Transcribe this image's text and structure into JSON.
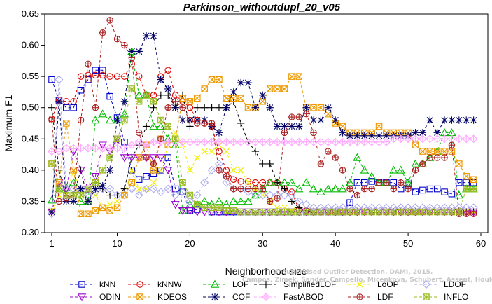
{
  "chart_data": {
    "type": "line",
    "title": "Parkinson_withoutdupl_20_v05",
    "xlabel": "Neighborhood size",
    "ylabel": "Maximum F1",
    "xlim": [
      1,
      60
    ],
    "ylim": [
      0.3,
      0.65
    ],
    "xticks": [
      "1",
      "10",
      "20",
      "30",
      "40",
      "50",
      "60"
    ],
    "yticks": [
      "0.30",
      "0.35",
      "0.40",
      "0.45",
      "0.50",
      "0.55",
      "0.60",
      "0.65"
    ],
    "grid": false,
    "legend_position": "bottom",
    "x": [
      1,
      2,
      3,
      4,
      5,
      6,
      7,
      8,
      9,
      10,
      11,
      12,
      13,
      14,
      15,
      16,
      17,
      18,
      19,
      20,
      21,
      22,
      23,
      24,
      25,
      26,
      27,
      28,
      29,
      30,
      31,
      32,
      33,
      34,
      35,
      36,
      37,
      38,
      39,
      40,
      41,
      42,
      43,
      44,
      45,
      46,
      47,
      48,
      49,
      50,
      51,
      52,
      53,
      54,
      55,
      56,
      57,
      58,
      59
    ],
    "series": [
      {
        "name": "kNN",
        "color": "#0000cc",
        "marker": "square",
        "values": [
          0.545,
          0.512,
          0.5,
          0.5,
          0.528,
          0.545,
          0.56,
          0.56,
          0.518,
          0.484,
          0.445,
          0.4,
          0.385,
          0.39,
          0.395,
          0.4,
          0.42,
          0.37,
          0.365,
          0.335,
          0.337,
          0.34,
          0.333,
          0.333,
          0.333,
          0.333,
          0.333,
          0.333,
          0.333,
          0.333,
          0.333,
          0.333,
          0.333,
          0.333,
          0.333,
          0.333,
          0.333,
          0.333,
          0.333,
          0.333,
          0.333,
          0.348,
          0.38,
          0.38,
          0.382,
          0.38,
          0.38,
          0.38,
          0.37,
          0.378,
          0.365,
          0.368,
          0.37,
          0.37,
          0.365,
          0.362,
          0.38,
          0.38,
          0.38
        ]
      },
      {
        "name": "kNNW",
        "color": "#dd0000",
        "marker": "circle",
        "values": [
          0.482,
          0.512,
          0.51,
          0.51,
          0.55,
          0.552,
          0.552,
          0.552,
          0.55,
          0.55,
          0.55,
          0.57,
          0.55,
          0.52,
          0.52,
          0.55,
          0.56,
          0.52,
          0.51,
          0.5,
          0.48,
          0.475,
          0.47,
          0.43,
          0.4,
          0.385,
          0.382,
          0.382,
          0.38,
          0.38,
          0.38,
          0.38,
          0.37,
          0.365,
          0.337,
          0.335,
          0.333,
          0.333,
          0.333,
          0.333,
          0.333,
          0.333,
          0.333,
          0.333,
          0.333,
          0.333,
          0.333,
          0.333,
          0.333,
          0.333,
          0.333,
          0.333,
          0.333,
          0.333,
          0.333,
          0.333,
          0.333,
          0.333,
          0.333
        ]
      },
      {
        "name": "LOF",
        "color": "#00bb00",
        "marker": "triangle-up",
        "values": [
          0.352,
          0.37,
          0.372,
          0.38,
          0.35,
          0.35,
          0.48,
          0.49,
          0.48,
          0.48,
          0.49,
          0.59,
          0.52,
          0.52,
          0.47,
          0.47,
          0.45,
          0.44,
          0.335,
          0.345,
          0.345,
          0.35,
          0.345,
          0.35,
          0.345,
          0.35,
          0.35,
          0.35,
          0.36,
          0.37,
          0.38,
          0.38,
          0.38,
          0.38,
          0.37,
          0.38,
          0.37,
          0.365,
          0.37,
          0.37,
          0.37,
          0.38,
          0.42,
          0.4,
          0.39,
          0.38,
          0.38,
          0.4,
          0.4,
          0.38,
          0.41,
          0.41,
          0.42,
          0.43,
          0.46,
          0.46,
          0.36,
          0.37,
          0.37
        ]
      },
      {
        "name": "SimplifiedLOF",
        "color": "#000000",
        "marker": "plus",
        "values": [
          0.5,
          0.4,
          0.355,
          0.36,
          0.4,
          0.35,
          0.38,
          0.37,
          0.36,
          0.36,
          0.37,
          0.42,
          0.44,
          0.47,
          0.5,
          0.52,
          0.52,
          0.5,
          0.52,
          0.47,
          0.5,
          0.5,
          0.5,
          0.5,
          0.5,
          0.51,
          0.475,
          0.445,
          0.43,
          0.41,
          0.41,
          0.38,
          0.37,
          0.35,
          0.34,
          0.335,
          0.333,
          0.333,
          0.333,
          0.333,
          0.333,
          0.333,
          0.333,
          0.333,
          0.333,
          0.333,
          0.333,
          0.333,
          0.333,
          0.333,
          0.333,
          0.333,
          0.333,
          0.333,
          0.333,
          0.333,
          0.333,
          0.333,
          0.333
        ]
      },
      {
        "name": "LoOP",
        "color": "#eeee00",
        "marker": "x",
        "values": [
          0.335,
          0.36,
          0.36,
          0.4,
          0.36,
          0.35,
          0.36,
          0.34,
          0.345,
          0.35,
          0.36,
          0.4,
          0.37,
          0.37,
          0.38,
          0.4,
          0.44,
          0.46,
          0.44,
          0.4,
          0.42,
          0.43,
          0.43,
          0.44,
          0.43,
          0.4,
          0.4,
          0.38,
          0.37,
          0.36,
          0.35,
          0.34,
          0.34,
          0.335,
          0.333,
          0.333,
          0.333,
          0.333,
          0.333,
          0.333,
          0.333,
          0.333,
          0.333,
          0.333,
          0.333,
          0.333,
          0.333,
          0.333,
          0.333,
          0.333,
          0.333,
          0.333,
          0.333,
          0.333,
          0.333,
          0.333,
          0.333,
          0.333,
          0.333
        ]
      },
      {
        "name": "LDOF",
        "color": "#aaaaee",
        "marker": "diamond",
        "values": [
          0.33,
          0.545,
          0.37,
          0.37,
          0.37,
          0.36,
          0.365,
          0.37,
          0.37,
          0.36,
          0.36,
          0.37,
          0.36,
          0.37,
          0.37,
          0.365,
          0.37,
          0.36,
          0.365,
          0.35,
          0.36,
          0.38,
          0.4,
          0.41,
          0.38,
          0.37,
          0.37,
          0.365,
          0.36,
          0.36,
          0.36,
          0.36,
          0.36,
          0.36,
          0.35,
          0.345,
          0.34,
          0.34,
          0.34,
          0.34,
          0.34,
          0.34,
          0.34,
          0.34,
          0.34,
          0.34,
          0.34,
          0.34,
          0.34,
          0.34,
          0.34,
          0.34,
          0.34,
          0.34,
          0.34,
          0.34,
          0.34,
          0.34,
          0.34
        ]
      },
      {
        "name": "ODIN",
        "color": "#9900cc",
        "marker": "triangle-down",
        "values": [
          0.333,
          0.38,
          0.37,
          0.43,
          0.4,
          0.37,
          0.39,
          0.44,
          0.43,
          0.45,
          0.42,
          0.42,
          0.42,
          0.42,
          0.42,
          0.42,
          0.4,
          0.345,
          0.335,
          0.335,
          0.333,
          0.333,
          0.333,
          0.333,
          0.333,
          0.333,
          0.333,
          0.333,
          0.333,
          0.333,
          0.333,
          0.333,
          0.333,
          0.333,
          0.333,
          0.333,
          0.333,
          0.333,
          0.333,
          0.333,
          0.333,
          0.333,
          0.333,
          0.333,
          0.333,
          0.333,
          0.333,
          0.333,
          0.333,
          0.333,
          0.333,
          0.333,
          0.333,
          0.333,
          0.333,
          0.333,
          0.333,
          0.333,
          0.333
        ]
      },
      {
        "name": "KDEOS",
        "color": "#ee9900",
        "marker": "square-x",
        "values": [
          0.41,
          0.38,
          0.475,
          0.4,
          0.33,
          0.33,
          0.335,
          0.34,
          0.335,
          0.34,
          0.36,
          0.38,
          0.42,
          0.44,
          0.4,
          0.45,
          0.44,
          0.45,
          0.515,
          0.51,
          0.515,
          0.53,
          0.545,
          0.545,
          0.515,
          0.515,
          0.515,
          0.5,
          0.5,
          0.51,
          0.53,
          0.53,
          0.53,
          0.55,
          0.55,
          0.5,
          0.5,
          0.5,
          0.49,
          0.475,
          0.47,
          0.46,
          0.46,
          0.46,
          0.46,
          0.47,
          0.46,
          0.46,
          0.46,
          0.46,
          0.44,
          0.43,
          0.43,
          0.43,
          0.43,
          0.43,
          0.41,
          0.39,
          0.385
        ]
      },
      {
        "name": "COF",
        "color": "#000066",
        "marker": "star",
        "values": [
          0.333,
          0.51,
          0.35,
          0.35,
          0.37,
          0.35,
          0.37,
          0.375,
          0.4,
          0.48,
          0.51,
          0.59,
          0.59,
          0.615,
          0.615,
          0.545,
          0.53,
          0.5,
          0.48,
          0.48,
          0.48,
          0.48,
          0.47,
          0.46,
          0.5,
          0.525,
          0.54,
          0.54,
          0.5,
          0.52,
          0.5,
          0.47,
          0.47,
          0.47,
          0.47,
          0.5,
          0.48,
          0.48,
          0.5,
          0.48,
          0.46,
          0.455,
          0.455,
          0.455,
          0.455,
          0.455,
          0.455,
          0.455,
          0.455,
          0.455,
          0.46,
          0.46,
          0.48,
          0.46,
          0.48,
          0.48,
          0.48,
          0.48,
          0.48
        ]
      },
      {
        "name": "FastABOD",
        "color": "#ffaaff",
        "marker": "diamond-plus",
        "values": [
          0.43,
          0.43,
          0.435,
          0.435,
          0.435,
          0.435,
          0.435,
          0.435,
          0.435,
          0.435,
          0.435,
          0.44,
          0.445,
          0.44,
          0.445,
          0.445,
          0.445,
          0.445,
          0.445,
          0.445,
          0.445,
          0.445,
          0.445,
          0.445,
          0.445,
          0.445,
          0.445,
          0.445,
          0.445,
          0.445,
          0.445,
          0.445,
          0.445,
          0.445,
          0.445,
          0.445,
          0.445,
          0.445,
          0.445,
          0.445,
          0.445,
          0.445,
          0.445,
          0.445,
          0.445,
          0.445,
          0.445,
          0.45,
          0.45,
          0.45,
          0.45,
          0.45,
          0.45,
          0.45,
          0.45,
          0.45,
          0.45,
          0.45,
          0.45
        ]
      },
      {
        "name": "LDF",
        "color": "#aa2222",
        "marker": "circle-plus",
        "values": [
          0.48,
          0.35,
          0.355,
          0.36,
          0.48,
          0.57,
          0.5,
          0.62,
          0.64,
          0.61,
          0.6,
          0.58,
          0.46,
          0.42,
          0.41,
          0.45,
          0.5,
          0.51,
          0.5,
          0.48,
          0.475,
          0.475,
          0.475,
          0.4,
          0.39,
          0.37,
          0.37,
          0.37,
          0.37,
          0.37,
          0.35,
          0.355,
          0.46,
          0.485,
          0.485,
          0.49,
          0.46,
          0.41,
          0.43,
          0.42,
          0.4,
          0.37,
          0.36,
          0.37,
          0.37,
          0.38,
          0.38,
          0.37,
          0.38,
          0.37,
          0.4,
          0.41,
          0.42,
          0.42,
          0.42,
          0.44,
          0.33,
          0.33,
          0.33
        ]
      },
      {
        "name": "INFLO",
        "color": "#99bb22",
        "marker": "square-star",
        "values": [
          0.41,
          0.37,
          0.36,
          0.36,
          0.36,
          0.37,
          0.38,
          0.4,
          0.42,
          0.45,
          0.48,
          0.53,
          0.51,
          0.52,
          0.51,
          0.48,
          0.47,
          0.45,
          0.38,
          0.36,
          0.345,
          0.34,
          0.34,
          0.34,
          0.335,
          0.335,
          0.333,
          0.333,
          0.333,
          0.333,
          0.333,
          0.333,
          0.333,
          0.333,
          0.333,
          0.333,
          0.333,
          0.333,
          0.333,
          0.333,
          0.333,
          0.333,
          0.333,
          0.333,
          0.333,
          0.333,
          0.333,
          0.333,
          0.333,
          0.333,
          0.333,
          0.333,
          0.333,
          0.333,
          0.333,
          0.333,
          0.333,
          0.37,
          0.37
        ]
      }
    ],
    "watermark": [
      "Campos, Zimek, Sander, Campello, Micenkova, Schubert, Assent, Houle",
      "Unsupervised Outlier Detection. DAMI, 2015."
    ]
  }
}
